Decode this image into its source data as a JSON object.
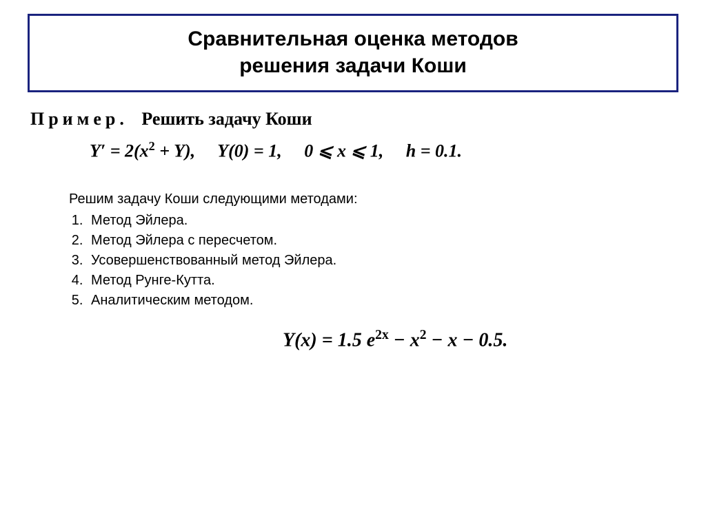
{
  "title": {
    "line1": "Сравнительная оценка методов",
    "line2": "решения задачи Коши",
    "border_color": "#1a237e",
    "font_size_pt": 30
  },
  "example": {
    "label": "Пример.",
    "text": "Решить задачу Коши",
    "font_size_pt": 26
  },
  "equation": {
    "lhs": "Y′ = 2(x",
    "sqr": "2",
    "after_sqr": " + Y),",
    "cond1": "Y(0) = 1,",
    "cond2": "0 ⩽ x ⩽ 1,",
    "cond3": "h = 0.1.",
    "font_size_pt": 26
  },
  "methods": {
    "intro": "Решим задачу Коши следующими методами:",
    "items": [
      "Метод Эйлера.",
      "Метод Эйлера с пересчетом.",
      "Усовершенствованный метод Эйлера.",
      "Метод Рунге-Кутта.",
      "Аналитическим методом."
    ],
    "font_size_pt": 20
  },
  "closed_form": {
    "pre": "Y(x) = 1.5 e",
    "exp": "2x",
    "post": " − x",
    "sqr": "2",
    "tail": " − x − 0.5.",
    "font_size_pt": 28
  },
  "colors": {
    "background": "#ffffff",
    "text": "#000000"
  }
}
